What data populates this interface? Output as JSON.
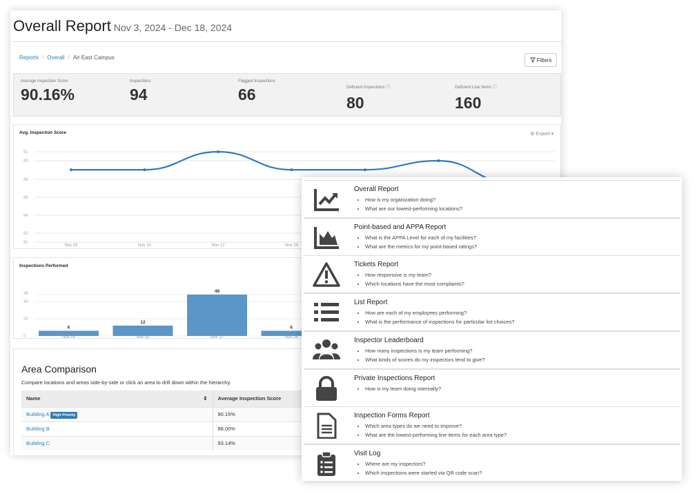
{
  "header": {
    "title": "Overall Report",
    "date_range": "Nov 3, 2024 - Dec 18, 2024"
  },
  "breadcrumb": [
    "Reports",
    "Overall",
    "Air East Campus"
  ],
  "filters_label": "Filters",
  "stats": [
    {
      "label": "Average Inspection Score",
      "value": "90.16%",
      "info": false
    },
    {
      "label": "Inspections",
      "value": "94",
      "info": false
    },
    {
      "label": "Flagged Inspections",
      "value": "66",
      "info": false
    },
    {
      "label": "Deficient Inspections",
      "value": "80",
      "info": true
    },
    {
      "label": "Deficient Line Items",
      "value": "160",
      "info": true
    }
  ],
  "export_label": "Export",
  "chart_data": [
    {
      "type": "line",
      "title": "Avg. Inspection Score",
      "x": [
        "Nov 03",
        "Nov 10",
        "Nov 17",
        "Nov 24",
        "",
        "",
        ""
      ],
      "values": [
        89,
        89,
        91,
        89,
        89,
        90,
        87.5
      ],
      "yticks": [
        81,
        82,
        84,
        86,
        88,
        90,
        91
      ],
      "ylim": [
        81,
        91
      ],
      "grid": true,
      "color": "#2f7bbf"
    },
    {
      "type": "bar",
      "title": "Inspections Performed",
      "categories": [
        "Nov 03",
        "Nov 10",
        "Nov 17",
        "Nov 24"
      ],
      "values": [
        6,
        12,
        48,
        6
      ],
      "yticks": [
        0,
        20,
        40,
        48
      ],
      "ylim": [
        0,
        48
      ],
      "grid": true,
      "color": "#5b96c8"
    }
  ],
  "area": {
    "title": "Area Comparison",
    "description": "Compare locations and areas side-by-side or click an area to drill down within the hierarchy.",
    "columns": [
      "Name",
      "Average Inspection Score"
    ],
    "rows": [
      {
        "name": "Building A",
        "badge": "High Priority",
        "score": "90.15%"
      },
      {
        "name": "Building B",
        "badge": "",
        "score": "88.00%"
      },
      {
        "name": "Building C",
        "badge": "",
        "score": "93.14%"
      }
    ]
  },
  "reports": [
    {
      "icon": "line-chart-icon",
      "title": "Overall Report",
      "questions": [
        "How is my organization doing?",
        "What are our lowest-performing locations?"
      ]
    },
    {
      "icon": "area-chart-icon",
      "title": "Point-based and APPA Report",
      "questions": [
        "What is the APPA Level for each of my facilities?",
        "What are the metrics for my point-based ratings?"
      ]
    },
    {
      "icon": "warning-icon",
      "title": "Tickets Report",
      "questions": [
        "How responsive is my team?",
        "Which locations have the most complaints?"
      ]
    },
    {
      "icon": "list-icon",
      "title": "List Report",
      "questions": [
        "How are each of my employees performing?",
        "What is the performance of inspections for particular list choices?"
      ]
    },
    {
      "icon": "users-icon",
      "title": "Inspector Leaderboard",
      "questions": [
        "How many inspections is my team performing?",
        "What kinds of scores do my inspectors tend to give?"
      ]
    },
    {
      "icon": "lock-icon",
      "title": "Private Inspections Report",
      "questions": [
        "How is my team doing internally?"
      ]
    },
    {
      "icon": "document-icon",
      "title": "Inspection Forms Report",
      "questions": [
        "Which area types do we need to improve?",
        "What are the lowest-performing line items for each area type?"
      ]
    },
    {
      "icon": "clipboard-icon",
      "title": "Visit Log",
      "questions": [
        "Where are my inspectors?",
        "Which inspections were started via QR code scan?"
      ]
    }
  ]
}
